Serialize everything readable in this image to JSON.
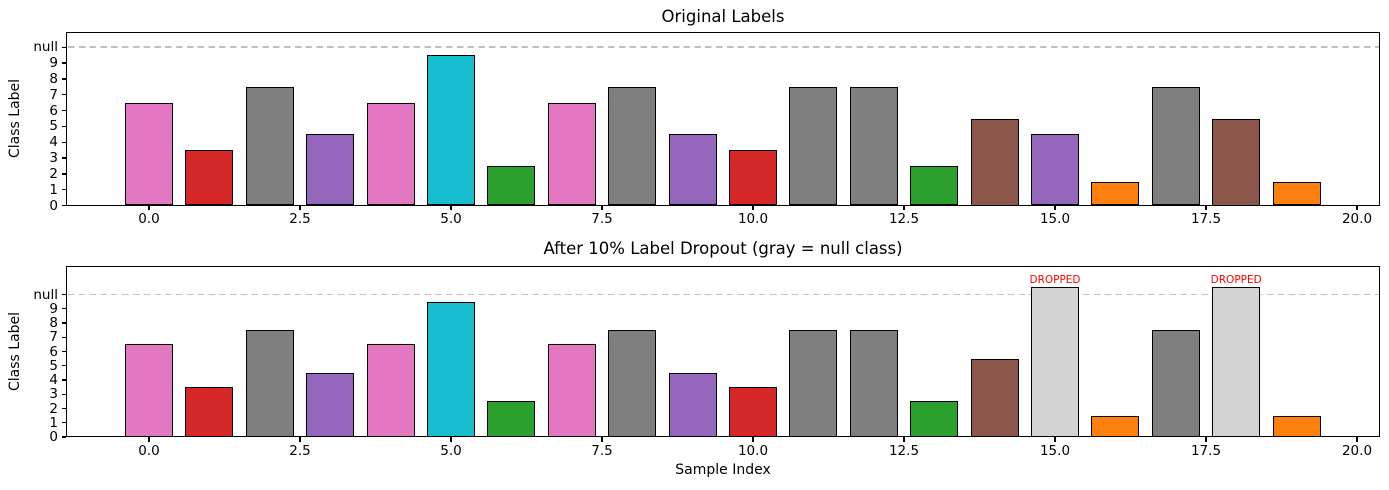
{
  "colors": {
    "background": "#ffffff",
    "bar_edge": "#000000",
    "null_line": "#c0c0c0",
    "dropped_fill": "#d3d3d3",
    "dropped_text": "#ff0000",
    "text": "#000000",
    "class_palette": {
      "1": "#ff7f0e",
      "2": "#2ca02c",
      "3": "#d62728",
      "4": "#9467bd",
      "5": "#8c564b",
      "6": "#e377c2",
      "7": "#7f7f7f",
      "9": "#17becf",
      "10": "#d3d3d3"
    }
  },
  "chart_data": [
    {
      "type": "bar",
      "title": "Original Labels",
      "xlabel": "",
      "ylabel": "Class Label",
      "x": [
        0,
        1,
        2,
        3,
        4,
        5,
        6,
        7,
        8,
        9,
        10,
        11,
        12,
        13,
        14,
        15,
        16,
        17,
        18,
        19
      ],
      "values": [
        6,
        3,
        7,
        4,
        6,
        9,
        2,
        6,
        7,
        4,
        3,
        7,
        7,
        2,
        5,
        4,
        1,
        7,
        5,
        1
      ],
      "bar_offset": 0.5,
      "null_value": 10,
      "dropped_indices": [],
      "dropped_label": "DROPPED",
      "xticks": [
        "0.0",
        "2.5",
        "5.0",
        "7.5",
        "10.0",
        "12.5",
        "15.0",
        "17.5",
        "20.0"
      ],
      "yticks": [
        "0",
        "1",
        "2",
        "3",
        "4",
        "5",
        "6",
        "7",
        "8",
        "9",
        "null"
      ],
      "xlim": [
        -1.39,
        20.39
      ],
      "ylim": [
        0,
        11
      ],
      "grid": false,
      "null_line_style": "dashed"
    },
    {
      "type": "bar",
      "title": "After 10% Label Dropout (gray = null class)",
      "xlabel": "Sample Index",
      "ylabel": "Class Label",
      "x": [
        0,
        1,
        2,
        3,
        4,
        5,
        6,
        7,
        8,
        9,
        10,
        11,
        12,
        13,
        14,
        15,
        16,
        17,
        18,
        19
      ],
      "values": [
        6,
        3,
        7,
        4,
        6,
        9,
        2,
        6,
        7,
        4,
        3,
        7,
        7,
        2,
        5,
        10,
        1,
        7,
        10,
        1
      ],
      "bar_offset": 0.5,
      "null_value": 10,
      "dropped_indices": [
        15,
        18
      ],
      "dropped_label": "DROPPED",
      "xticks": [
        "0.0",
        "2.5",
        "5.0",
        "7.5",
        "10.0",
        "12.5",
        "15.0",
        "17.5",
        "20.0"
      ],
      "yticks": [
        "0",
        "1",
        "2",
        "3",
        "4",
        "5",
        "6",
        "7",
        "8",
        "9",
        "null"
      ],
      "xlim": [
        -1.39,
        20.39
      ],
      "ylim": [
        0,
        12
      ],
      "grid": false,
      "null_line_style": "dashed"
    }
  ]
}
